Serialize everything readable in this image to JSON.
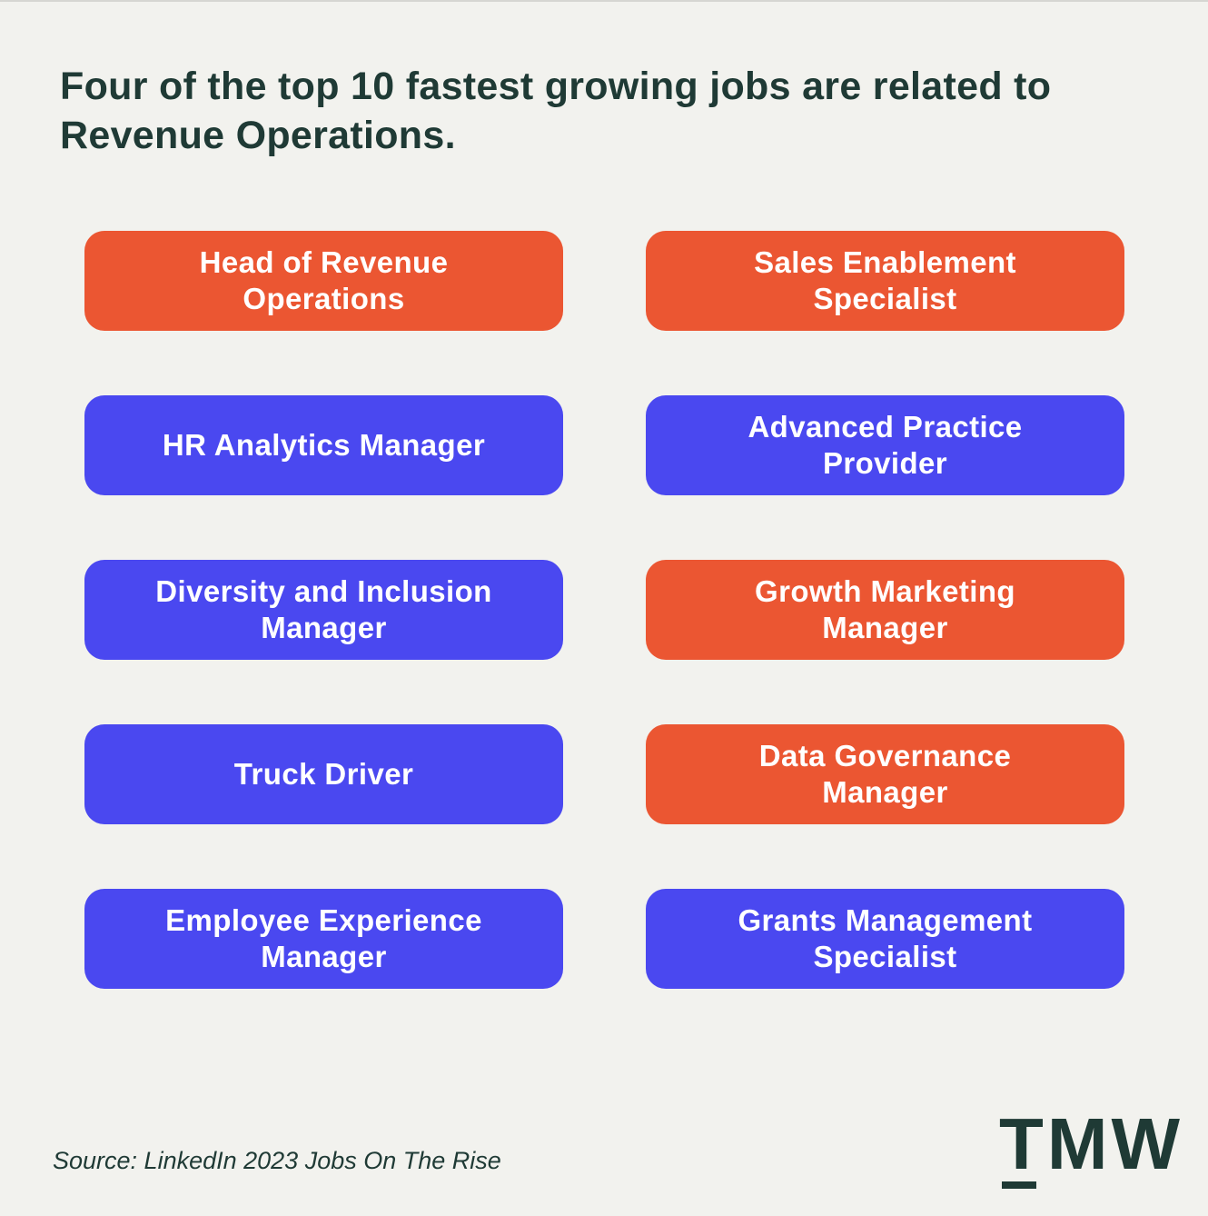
{
  "title": "Four of the top 10 fastest growing jobs are related to Revenue Operations.",
  "jobs": [
    {
      "label": "Head of Revenue Operations",
      "color": "#eb5632"
    },
    {
      "label": "Sales Enablement Specialist",
      "color": "#eb5632"
    },
    {
      "label": "HR Analytics Manager",
      "color": "#4a48f0"
    },
    {
      "label": "Advanced Practice Provider",
      "color": "#4a48f0"
    },
    {
      "label": "Diversity and Inclusion Manager",
      "color": "#4a48f0"
    },
    {
      "label": "Growth Marketing Manager",
      "color": "#eb5632"
    },
    {
      "label": "Truck Driver",
      "color": "#4a48f0"
    },
    {
      "label": "Data Governance Manager",
      "color": "#eb5632"
    },
    {
      "label": "Employee Experience Manager",
      "color": "#4a48f0"
    },
    {
      "label": "Grants Management Specialist",
      "color": "#4a48f0"
    }
  ],
  "source": "Source: LinkedIn 2023 Jobs On The Rise",
  "logo": "TMW"
}
